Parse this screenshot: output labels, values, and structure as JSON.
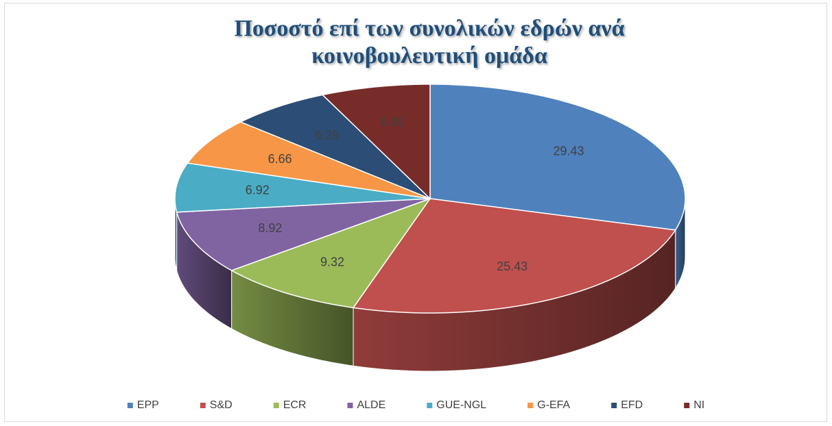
{
  "chart_data": {
    "type": "pie3d",
    "title": "Ποσοστό επί των συνολικών εδρών ανά κοινοβουλευτική ομάδα",
    "categories": [
      "EPP",
      "S&D",
      "ECR",
      "ALDE",
      "GUE-NGL",
      "G-EFA",
      "EFD",
      "NI"
    ],
    "values": [
      29.43,
      25.43,
      9.32,
      8.92,
      6.92,
      6.66,
      6.39,
      6.92
    ],
    "colors": [
      "#4f81bd",
      "#c0504d",
      "#9bbb59",
      "#8064a2",
      "#4bacc6",
      "#f79646",
      "#2c4d75",
      "#772c2a"
    ],
    "legend": "bottom"
  }
}
